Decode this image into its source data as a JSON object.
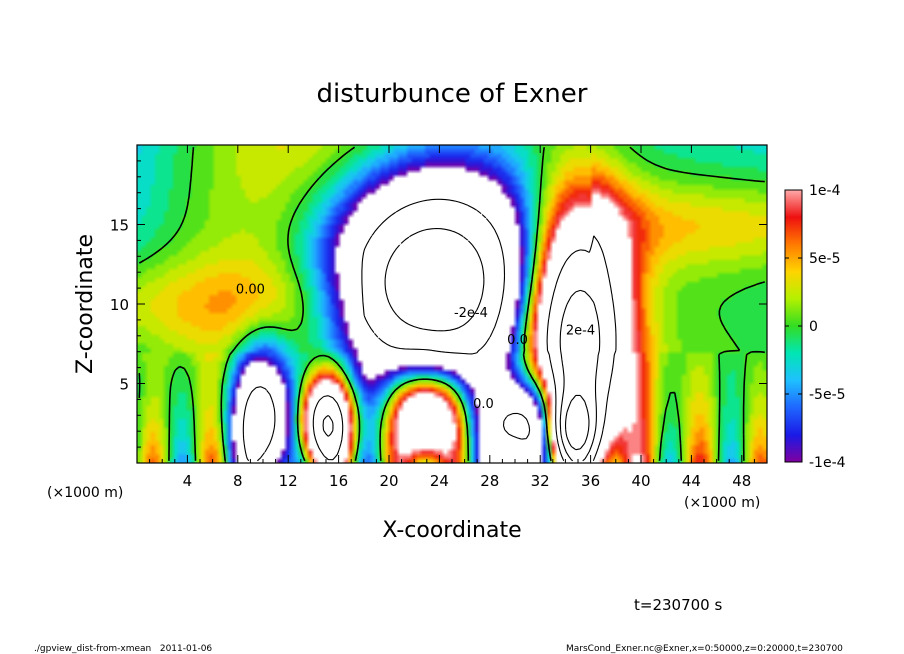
{
  "chart_data": {
    "type": "heatmap",
    "title": "disturbunce of Exner",
    "xlabel": "X-coordinate",
    "ylabel": "Z-coordinate",
    "x_unit_left": "(×1000 m)",
    "x_unit_right": "(×1000 m)",
    "xlim": [
      0,
      50
    ],
    "ylim": [
      0,
      20
    ],
    "x_ticks": [
      4,
      8,
      12,
      16,
      20,
      24,
      28,
      32,
      36,
      40,
      44,
      48
    ],
    "y_ticks": [
      5,
      10,
      15
    ],
    "colorbar": {
      "range": [
        -0.0001,
        0.0001
      ],
      "tick_values": [
        0.0001,
        5e-05,
        0,
        -5e-05,
        -0.0001
      ],
      "tick_labels": [
        "1e-4",
        "5e-5",
        "0",
        "-5e-5",
        "-1e-4"
      ]
    },
    "contour_labels": [
      {
        "text": "0.00",
        "x": 9.0,
        "z": 10.8
      },
      {
        "text": "-2e-4",
        "x": 26.5,
        "z": 9.3
      },
      {
        "text": "2e-4",
        "x": 35.2,
        "z": 8.2
      },
      {
        "text": "0.0",
        "x": 30.2,
        "z": 7.6
      },
      {
        "text": "0.0",
        "x": 27.5,
        "z": 3.6
      }
    ],
    "features": [
      {
        "kind": "negative",
        "cx": 23.5,
        "cz": 11.5,
        "sx": 5.5,
        "sz": 4.5,
        "amp": -0.0004
      },
      {
        "kind": "positive",
        "cx": 34.8,
        "cz": 8.0,
        "sx": 2.8,
        "sz": 5.5,
        "amp": 0.0004
      },
      {
        "kind": "positive",
        "cx": 15.0,
        "cz": 2.5,
        "sx": 1.4,
        "sz": 2.0,
        "amp": 0.0003
      },
      {
        "kind": "negative",
        "cx": 10.0,
        "cz": 2.5,
        "sx": 1.6,
        "sz": 3.0,
        "amp": -0.0003
      },
      {
        "kind": "negative",
        "cx": 31.0,
        "cz": 2.2,
        "sx": 2.0,
        "sz": 2.2,
        "amp": -0.0003
      },
      {
        "kind": "positive",
        "cx": 34.5,
        "cz": 2.0,
        "sx": 1.4,
        "sz": 1.6,
        "amp": 0.0003
      },
      {
        "kind": "positive",
        "cx": 23.0,
        "cz": 3.0,
        "sx": 1.8,
        "sz": 2.2,
        "amp": 0.0003
      }
    ]
  },
  "footer": {
    "time": "t=230700 s",
    "script": "./gpview_dist-from-xmean   2011-01-06",
    "source": "MarsCond_Exner.nc@Exner,x=0:50000,z=0:20000,t=230700"
  }
}
